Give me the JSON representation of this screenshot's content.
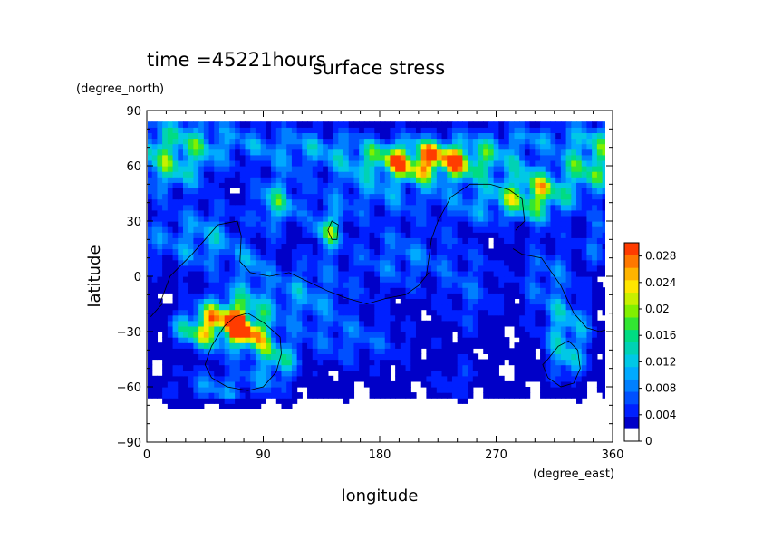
{
  "header": {
    "time_label": "time =45221hours"
  },
  "chart_data": {
    "type": "heatmap",
    "title": "surface stress",
    "xlabel": "longitude",
    "ylabel": "latitude",
    "x_units": "(degree_east)",
    "y_units": "(degree_north)",
    "xlim": [
      0,
      360
    ],
    "ylim": [
      -90,
      90
    ],
    "x_ticks": [
      0,
      90,
      180,
      270,
      360
    ],
    "y_ticks": [
      -90,
      -60,
      -30,
      0,
      30,
      60,
      90
    ],
    "x_tick_labels": [
      "0",
      "90",
      "180",
      "270",
      "360"
    ],
    "y_tick_labels": [
      "−90",
      "−60",
      "−30",
      "0",
      "30",
      "60",
      "90"
    ],
    "colorbar": {
      "min": 0,
      "max": 0.03,
      "tick_values": [
        0,
        0.004,
        0.008,
        0.012,
        0.016,
        0.02,
        0.024,
        0.028
      ],
      "tick_labels": [
        "0",
        "0.004",
        "0.008",
        "0.012",
        "0.016",
        "0.02",
        "0.024",
        "0.028"
      ],
      "colors": [
        "#ffffff",
        "#0000c8",
        "#0020ff",
        "#0050ff",
        "#0080ff",
        "#00aaff",
        "#00c8e6",
        "#00d2b4",
        "#00dc82",
        "#32e632",
        "#82f000",
        "#c8f000",
        "#ffe600",
        "#ffb400",
        "#ff7800",
        "#ff3c00"
      ]
    },
    "maxima": [
      {
        "lon": 220,
        "lat": 63,
        "value": 0.03
      },
      {
        "lon": 65,
        "lat": -23,
        "value": 0.028
      },
      {
        "lon": 300,
        "lat": 45,
        "value": 0.026
      },
      {
        "lon": 55,
        "lat": -32,
        "value": 0.024
      },
      {
        "lon": 140,
        "lat": 25,
        "value": 0.016
      },
      {
        "lon": 100,
        "lat": 40,
        "value": 0.014
      },
      {
        "lon": 325,
        "lat": -30,
        "value": 0.014
      },
      {
        "lon": 340,
        "lat": 60,
        "value": 0.016
      },
      {
        "lon": 20,
        "lat": 60,
        "value": 0.014
      },
      {
        "lon": 100,
        "lat": -45,
        "value": 0.016
      }
    ]
  }
}
